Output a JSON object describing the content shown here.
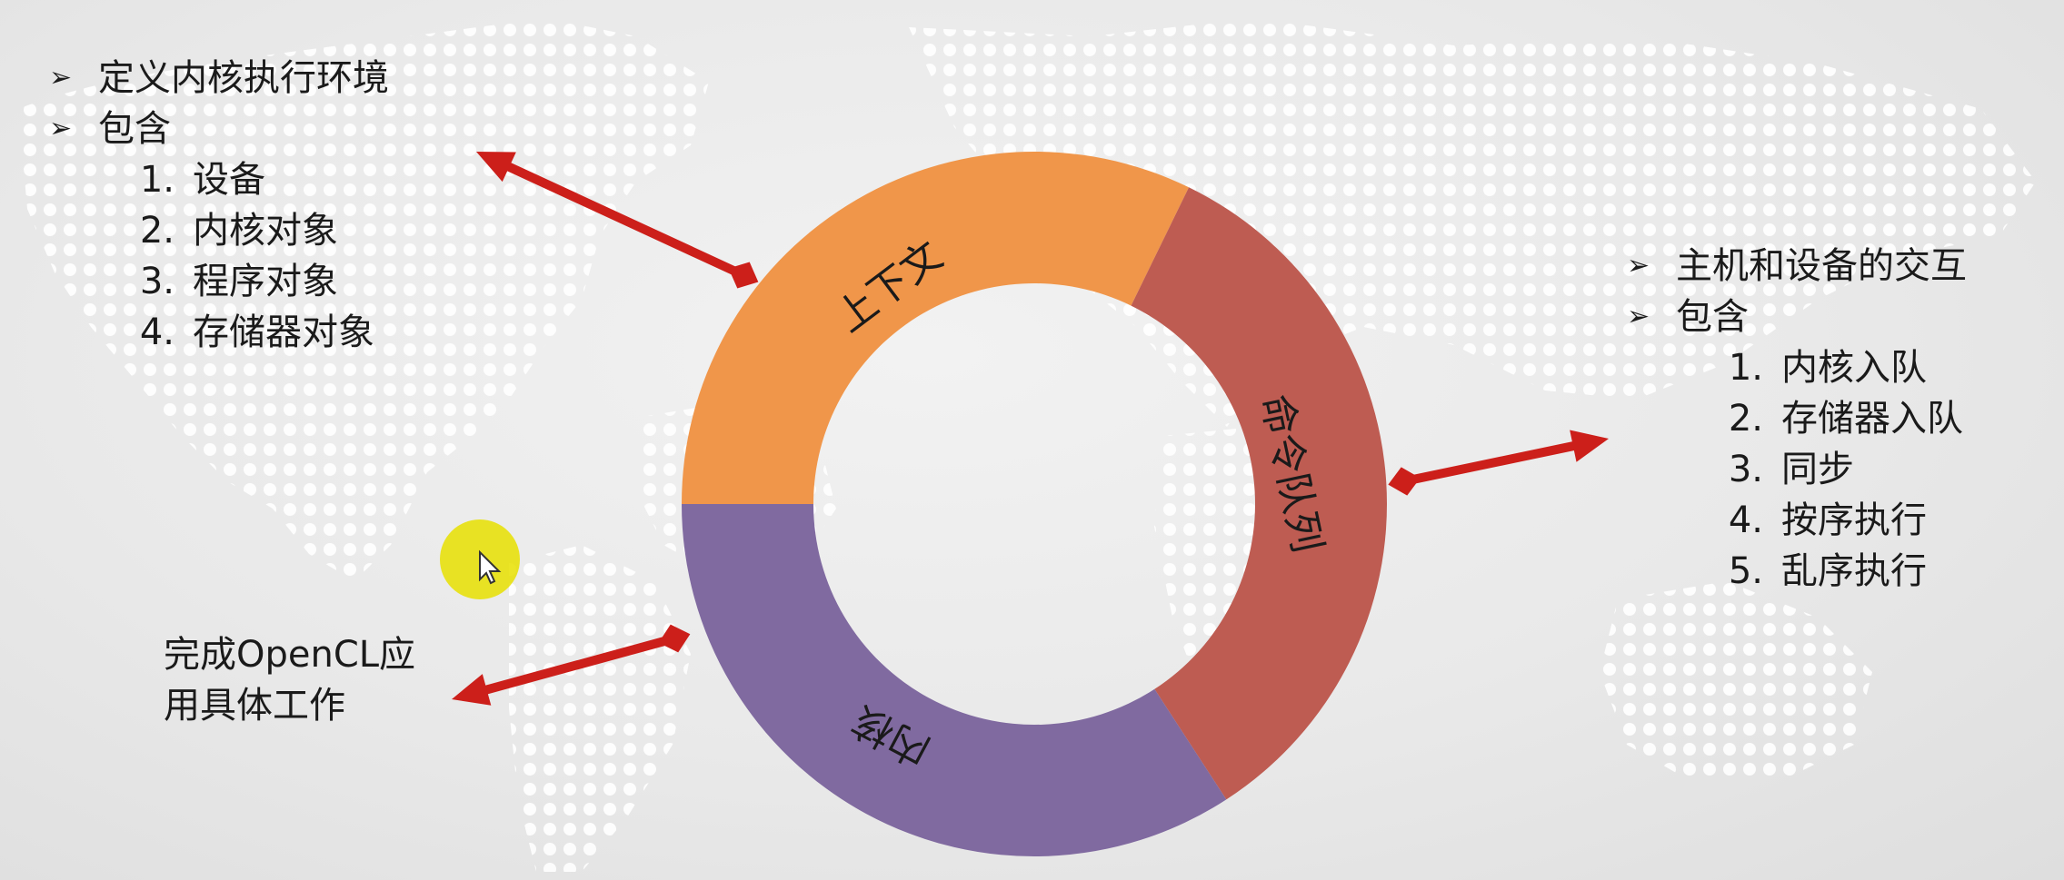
{
  "diagram": {
    "ring_segments": [
      {
        "id": "context",
        "label": "上下文",
        "color": "#f0964a"
      },
      {
        "id": "command-queue",
        "label": "命令队列",
        "color": "#be5c52"
      },
      {
        "id": "kernel",
        "label": "内核",
        "color": "#806aa0"
      }
    ],
    "arrow_color": "#cc1f1a"
  },
  "context_info": {
    "bullets": [
      "定义内核执行环境",
      "包含"
    ],
    "items": [
      {
        "num": "1.",
        "text": "设备"
      },
      {
        "num": "2.",
        "text": "内核对象"
      },
      {
        "num": "3.",
        "text": "程序对象"
      },
      {
        "num": "4.",
        "text": "存储器对象"
      }
    ]
  },
  "queue_info": {
    "bullets": [
      "主机和设备的交互",
      "包含"
    ],
    "items": [
      {
        "num": "1.",
        "text": "内核入队"
      },
      {
        "num": "2.",
        "text": "存储器入队"
      },
      {
        "num": "3.",
        "text": "同步"
      },
      {
        "num": "4.",
        "text": "按序执行"
      },
      {
        "num": "5.",
        "text": "乱序执行"
      }
    ]
  },
  "kernel_info": {
    "line1": "完成OpenCL应",
    "line2": "用具体工作"
  }
}
